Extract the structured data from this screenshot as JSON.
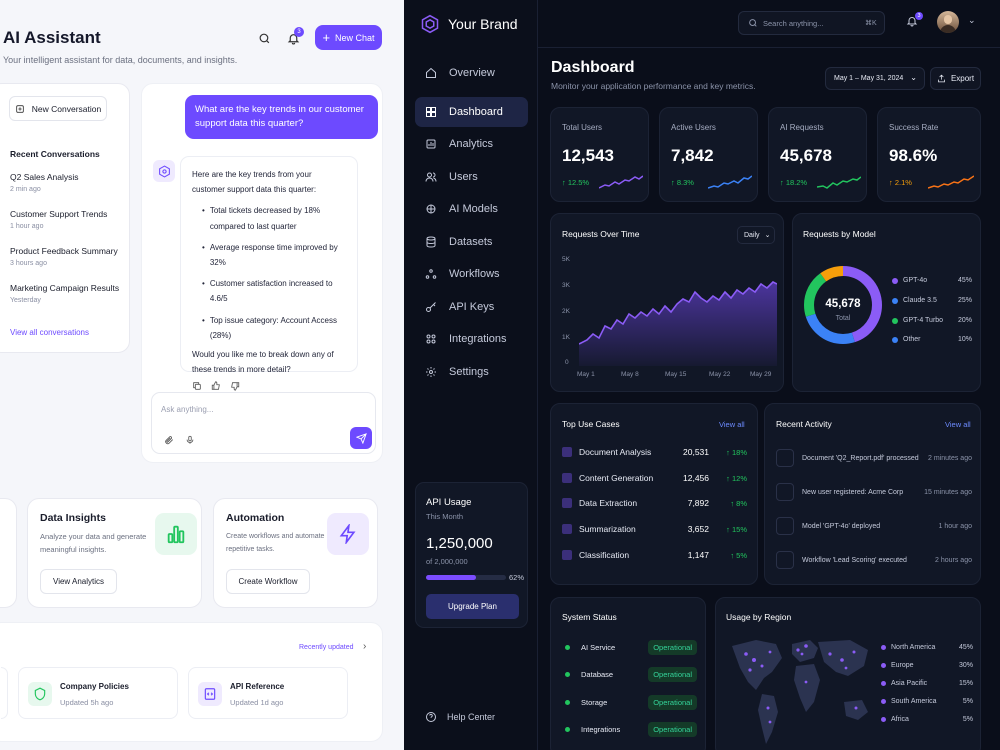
{
  "left": {
    "title": "AI Assistant",
    "subtitle": "Your intelligent assistant for data, documents, and insights.",
    "new_chat": "New Chat",
    "notif_count": "3",
    "new_conversation": "New Conversation",
    "recent_heading": "Recent Conversations",
    "conversations": [
      {
        "title": "Q2 Sales Analysis",
        "time": "2 min ago"
      },
      {
        "title": "Customer Support Trends",
        "time": "1 hour ago"
      },
      {
        "title": "Product Feedback Summary",
        "time": "3 hours ago"
      },
      {
        "title": "Marketing Campaign Results",
        "time": "Yesterday"
      }
    ],
    "view_all": "View all conversations",
    "user_message": "What are the key trends in our customer support data this quarter?",
    "ai_intro": "Here are the key trends from your customer support data this quarter:",
    "ai_bullets": [
      "Total tickets decreased by 18% compared to last quarter",
      "Average response time improved by 32%",
      "Customer satisfaction increased to 4.6/5",
      "Top issue category: Account Access (28%)"
    ],
    "ai_followup": "Would you like me to break down any of these trends in more detail?",
    "ask_placeholder": "Ask anything...",
    "insights": {
      "title": "Data Insights",
      "desc": "Analyze your data and generate meaningful insights.",
      "btn": "View Analytics"
    },
    "automation": {
      "title": "Automation",
      "desc": "Create workflows and automate repetitive tasks.",
      "btn": "Create Workflow"
    },
    "recently_updated": "Recently updated",
    "docs": [
      {
        "title": "Company Policies",
        "updated": "Updated 5h ago"
      },
      {
        "title": "API Reference",
        "updated": "Updated 1d ago"
      }
    ]
  },
  "right": {
    "brand": "Your Brand",
    "search_placeholder": "Search anything...",
    "search_shortcut": "⌘K",
    "notif_count": "3",
    "nav": [
      "Overview",
      "Dashboard",
      "Analytics",
      "Users",
      "AI Models",
      "Datasets",
      "Workflows",
      "API Keys",
      "Integrations",
      "Settings"
    ],
    "help": "Help Center",
    "api_usage": {
      "title": "API Usage",
      "period": "This Month",
      "value": "1,250,000",
      "limit": "of 2,000,000",
      "percent": "62%",
      "fraction": 0.62,
      "btn": "Upgrade Plan"
    },
    "dashboard": {
      "title": "Dashboard",
      "subtitle": "Monitor your application performance and key metrics.",
      "date_range": "May 1 – May 31, 2024",
      "export": "Export"
    },
    "stats": [
      {
        "label": "Total Users",
        "value": "12,543",
        "change": "↑ 12.5%",
        "color": "#8b5cf6"
      },
      {
        "label": "Active Users",
        "value": "7,842",
        "change": "↑ 8.3%",
        "color": "#3b82f6"
      },
      {
        "label": "AI Requests",
        "value": "45,678",
        "change": "↑ 18.2%",
        "color": "#22c55e"
      },
      {
        "label": "Success Rate",
        "value": "98.6%",
        "change": "↑ 2.1%",
        "color": "#f97316"
      }
    ],
    "requests": {
      "title": "Requests Over Time",
      "granularity": "Daily",
      "yticks": [
        "5K",
        "3K",
        "2K",
        "1K",
        "0"
      ],
      "xticks": [
        "May 1",
        "May 8",
        "May 15",
        "May 22",
        "May 29"
      ]
    },
    "by_model": {
      "title": "Requests by Model",
      "total": "45,678",
      "total_label": "Total",
      "items": [
        {
          "name": "GPT-4o",
          "pct": "45%",
          "color": "#8b5cf6"
        },
        {
          "name": "Claude 3.5",
          "pct": "25%",
          "color": "#3b82f6"
        },
        {
          "name": "GPT-4 Turbo",
          "pct": "20%",
          "color": "#22c55e"
        },
        {
          "name": "Other",
          "pct": "10%",
          "color": "#f59e0b"
        }
      ]
    },
    "use_cases": {
      "title": "Top Use Cases",
      "view_all": "View all",
      "items": [
        {
          "name": "Document Analysis",
          "value": "20,531",
          "change": "↑ 18%"
        },
        {
          "name": "Content Generation",
          "value": "12,456",
          "change": "↑ 12%"
        },
        {
          "name": "Data Extraction",
          "value": "7,892",
          "change": "↑ 8%"
        },
        {
          "name": "Summarization",
          "value": "3,652",
          "change": "↑ 15%"
        },
        {
          "name": "Classification",
          "value": "1,147",
          "change": "↑ 5%"
        }
      ]
    },
    "activity": {
      "title": "Recent Activity",
      "view_all": "View all",
      "items": [
        {
          "text": "Document 'Q2_Report.pdf' processed",
          "time": "2 minutes ago"
        },
        {
          "text": "New user registered: Acme Corp",
          "time": "15 minutes ago"
        },
        {
          "text": "Model 'GPT-4o' deployed",
          "time": "1 hour ago"
        },
        {
          "text": "Workflow 'Lead Scoring' executed",
          "time": "2 hours ago"
        }
      ]
    },
    "status": {
      "title": "System Status",
      "items": [
        {
          "name": "AI Service",
          "state": "Operational"
        },
        {
          "name": "Database",
          "state": "Operational"
        },
        {
          "name": "Storage",
          "state": "Operational"
        },
        {
          "name": "Integrations",
          "state": "Operational"
        }
      ]
    },
    "region": {
      "title": "Usage by Region",
      "items": [
        {
          "name": "North America",
          "pct": "45%"
        },
        {
          "name": "Europe",
          "pct": "30%"
        },
        {
          "name": "Asia Pacific",
          "pct": "15%"
        },
        {
          "name": "South America",
          "pct": "5%"
        },
        {
          "name": "Africa",
          "pct": "5%"
        }
      ]
    }
  }
}
